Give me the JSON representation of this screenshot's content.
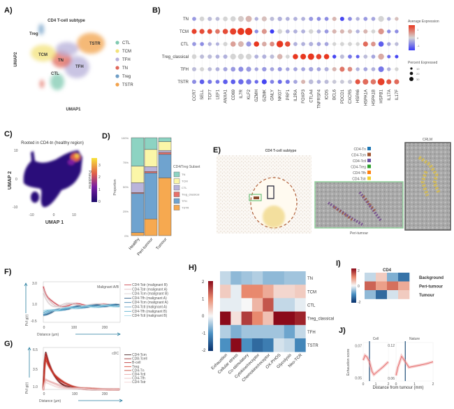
{
  "panels": {
    "a": "A)",
    "b": "B)",
    "c": "C)",
    "d": "D)",
    "e": "E)",
    "f": "F)",
    "g": "G)",
    "h": "H)",
    "i": "I)",
    "j": "J)"
  },
  "chart_data": [
    {
      "id": "A",
      "type": "scatter",
      "title": "CD4 T-cell subtype",
      "xlabel": "UMAP1",
      "ylabel": "UMAP2",
      "xticks": [
        "-10",
        "0",
        "10"
      ],
      "yticks": [
        "10",
        "5",
        "0",
        "-5",
        "-10"
      ],
      "legend": [
        {
          "label": "CTL",
          "color": "#7fc9b0"
        },
        {
          "label": "TCM",
          "color": "#f3e27a"
        },
        {
          "label": "TFH",
          "color": "#b7b0da"
        },
        {
          "label": "TN",
          "color": "#e0675a"
        },
        {
          "label": "Treg",
          "color": "#6f9ec6"
        },
        {
          "label": "TSTR",
          "color": "#f2a24b"
        }
      ],
      "cluster_labels": [
        "Treg",
        "TCM",
        "TN",
        "TFH",
        "CTL",
        "TSTR"
      ]
    },
    {
      "id": "B",
      "type": "dotplot",
      "rows": [
        "TN",
        "TCM",
        "CTL",
        "Treg_classical",
        "TFH",
        "TSTR"
      ],
      "genes": [
        "CCR7",
        "SELL",
        "TCF7",
        "LEF1",
        "ANXA1",
        "CD69",
        "IL7R",
        "KLF2",
        "GZMH",
        "GZMK",
        "GNLY",
        "NKG7",
        "PRF1",
        "IL2RA",
        "FOXP3",
        "CTLA4",
        "TNFRSF4",
        "ICOS",
        "BCL6",
        "PDCD1",
        "CXCR5",
        "HSPA6",
        "HSPA1A",
        "HSPA1B",
        "HSPB1",
        "IL17A",
        "IL17F"
      ],
      "avg_expression": [
        [
          -0.5,
          0,
          -0.2,
          -0.2,
          0,
          0,
          0.1,
          0.3,
          -0.3,
          0.2,
          -0.2,
          -0.3,
          -0.3,
          -0.3,
          -0.3,
          -0.5,
          -0.6,
          -0.6,
          0.3,
          -1.2,
          -0.6,
          -0.3,
          -0.5,
          -0.4,
          0,
          -0.3,
          0.2
        ],
        [
          1.4,
          1.3,
          1.3,
          0.9,
          1.3,
          1.4,
          1.5,
          1.5,
          -0.6,
          0.6,
          -1.3,
          0,
          -0.3,
          -0.3,
          -0.3,
          0,
          -0.3,
          -0.5,
          0.3,
          0.3,
          0.2,
          -0.3,
          0.3,
          0,
          0.6,
          -0.6,
          -0.6
        ],
        [
          -0.5,
          -0.6,
          -0.3,
          -0.3,
          0,
          0.5,
          0.3,
          -0.5,
          1.5,
          0.4,
          0.7,
          1.5,
          1.3,
          -0.3,
          -0.3,
          -0.3,
          -0.4,
          -0.4,
          0,
          0,
          0,
          0,
          1.0,
          0.6,
          -1.0,
          -0.4,
          -0.2
        ],
        [
          0,
          -0.2,
          -0.2,
          -0.3,
          -0.3,
          0,
          0,
          0,
          -0.3,
          -0.3,
          -0.2,
          0.3,
          0,
          1.5,
          1.5,
          1.6,
          1.4,
          1.5,
          -1.2,
          -0.2,
          -0.8,
          -1.0,
          -0.2,
          -0.4,
          0.4,
          -0.9,
          -1.2
        ],
        [
          -0.2,
          0,
          -0.2,
          -0.3,
          -0.4,
          -0.5,
          -0.6,
          -0.5,
          -0.4,
          -0.5,
          -0.4,
          -0.5,
          -0.4,
          -0.4,
          -0.4,
          -0.4,
          -0.4,
          -0.3,
          0.3,
          0.9,
          0.7,
          -0.3,
          -0.4,
          -0.3,
          -0.8,
          -0.3,
          0
        ],
        [
          -0.6,
          -1.0,
          -0.8,
          -0.8,
          -1.0,
          -1.0,
          -0.9,
          -0.8,
          -0.9,
          -1.2,
          -0.7,
          -0.9,
          -0.8,
          -0.4,
          0.3,
          -0.2,
          -0.3,
          -0.2,
          -0.1,
          -0.1,
          -0.1,
          1.2,
          1.0,
          0.9,
          1.4,
          1.2,
          1.0
        ]
      ],
      "percent_expressed": [
        [
          5,
          8,
          6,
          5,
          8,
          12,
          15,
          18,
          4,
          10,
          6,
          7,
          5,
          5,
          5,
          6,
          5,
          5,
          6,
          6,
          5,
          4,
          5,
          5,
          15,
          4,
          4
        ],
        [
          10,
          10,
          9,
          8,
          12,
          20,
          25,
          28,
          4,
          10,
          6,
          8,
          5,
          5,
          5,
          7,
          5,
          5,
          6,
          6,
          6,
          4,
          6,
          5,
          15,
          4,
          4
        ],
        [
          5,
          5,
          4,
          3,
          6,
          12,
          14,
          10,
          12,
          8,
          8,
          22,
          12,
          5,
          5,
          6,
          5,
          5,
          4,
          5,
          5,
          4,
          10,
          8,
          12,
          4,
          4
        ],
        [
          8,
          6,
          6,
          5,
          6,
          15,
          15,
          14,
          5,
          6,
          6,
          12,
          5,
          12,
          14,
          20,
          12,
          12,
          4,
          6,
          5,
          3,
          5,
          5,
          16,
          3,
          3
        ],
        [
          6,
          6,
          5,
          5,
          6,
          8,
          10,
          10,
          4,
          7,
          5,
          6,
          4,
          5,
          5,
          7,
          5,
          6,
          6,
          10,
          8,
          4,
          5,
          5,
          14,
          4,
          4
        ],
        [
          6,
          8,
          6,
          5,
          8,
          8,
          12,
          12,
          4,
          10,
          5,
          6,
          6,
          5,
          6,
          8,
          5,
          6,
          5,
          5,
          6,
          10,
          14,
          12,
          25,
          10,
          10
        ]
      ],
      "color_legend_title": "Average Expression",
      "color_ticks": [
        "1",
        "0",
        "-1"
      ],
      "size_legend_title": "Percent Expressed",
      "size_ticks": [
        "10",
        "20",
        "30"
      ],
      "colors": {
        "low": "#3b3bf5",
        "mid": "#d4d4d4",
        "high": "#e8371f"
      }
    },
    {
      "id": "C",
      "type": "scatter",
      "title": "Rooted in CD4-tn (healthy region)",
      "xlabel": "UMAP 1",
      "ylabel": "UMAP 2",
      "xticks": [
        "-10",
        "0",
        "10"
      ],
      "yticks": [
        "10",
        "0",
        "-10"
      ],
      "colorbar_title": "Pseudotime",
      "colorbar_ticks": [
        "3",
        "2",
        "1",
        "0"
      ]
    },
    {
      "id": "D",
      "type": "bar",
      "stacked": true,
      "categories": [
        "Healthy",
        "Peri-tumour",
        "Tumour"
      ],
      "ylabel": "Proportion",
      "yticks": [
        "100%",
        "75%",
        "50%",
        "25%",
        "0%"
      ],
      "legend_title": "CD4/Treg Subset",
      "series": [
        {
          "name": "TSTR",
          "color": "#f6a950",
          "values": [
            3,
            17,
            59
          ]
        },
        {
          "name": "TFH",
          "color": "#6fa3cf",
          "values": [
            40,
            47,
            24
          ]
        },
        {
          "name": "Treg_classical",
          "color": "#e8716a",
          "values": [
            1,
            1.5,
            2
          ]
        },
        {
          "name": "CTL",
          "color": "#b9b4da",
          "values": [
            10,
            5,
            2
          ]
        },
        {
          "name": "TCM",
          "color": "#fbf6a8",
          "values": [
            17,
            17.5,
            9
          ]
        },
        {
          "name": "TN",
          "color": "#8dd3c2",
          "values": [
            29,
            12,
            4
          ]
        }
      ]
    },
    {
      "id": "E",
      "type": "image",
      "title": "CD4 T-cell subtype",
      "inset_label": "Peri-tumour",
      "crlm_label": "CRLM",
      "legend": [
        {
          "label": "CD4-Tn",
          "color": "#1f77b4"
        },
        {
          "label": "CD4-Tcm",
          "color": "#a0522d"
        },
        {
          "label": "CD4-Tctl",
          "color": "#6a51a3"
        },
        {
          "label": "CD4-Treg",
          "color": "#2ca02c"
        },
        {
          "label": "CD4-Tfh",
          "color": "#ff7f0e"
        },
        {
          "label": "CD4-Tstr",
          "color": "#f2d02e"
        }
      ]
    },
    {
      "id": "F",
      "type": "line",
      "annotation": "Malignant A/B",
      "xlabel": "Distance (µm)",
      "ylabel": "Pcf g(r)",
      "xticks": [
        "0",
        "100",
        "200"
      ],
      "yticks": [
        "3.0",
        "1.0",
        "-0.5"
      ],
      "xlim": [
        0,
        250
      ],
      "ylim": [
        -0.5,
        3.0
      ],
      "legend": [
        {
          "label": "CD4-Tstr (malignant B)",
          "color": "#c9343f"
        },
        {
          "label": "CD4-Tstr (malignant A)",
          "color": "#d9b8bb"
        },
        {
          "label": "CD4-Tcm (malignant B)",
          "color": "#d6c9cb"
        },
        {
          "label": "CD4-Tfh (malignant A)",
          "color": "#1f4e79"
        },
        {
          "label": "CD4-Tcm (malignant A)",
          "color": "#2f78a8"
        },
        {
          "label": "CD4-Tctl (malignant A)",
          "color": "#5a9fc6"
        },
        {
          "label": "CD4-Tfh (malignant B)",
          "color": "#4aa7c9"
        },
        {
          "label": "CD4-Tctl (malignant B)",
          "color": "#9fd5e6"
        }
      ]
    },
    {
      "id": "G",
      "type": "line",
      "annotation": "cDC",
      "xlabel": "Distance (µm)",
      "ylabel": "Pcf g(r)",
      "xticks": [
        "0",
        "100",
        "200"
      ],
      "yticks": [
        "6.5",
        "3.5",
        "1.0"
      ],
      "xlim": [
        0,
        250
      ],
      "ylim": [
        1.0,
        6.5
      ],
      "legend": [
        {
          "label": "CD4-Tcm",
          "color": "#3a0d0d"
        },
        {
          "label": "CD8-Tcell",
          "color": "#8b1a1a"
        },
        {
          "label": "B-cell",
          "color": "#b22222"
        },
        {
          "label": "Treg",
          "color": "#d7301f"
        },
        {
          "label": "CD4-Tn",
          "color": "#c0392b"
        },
        {
          "label": "CD4-Tctl",
          "color": "#e8a3a3"
        },
        {
          "label": "CD4-Tfh",
          "color": "#eab8b8"
        },
        {
          "label": "CD4-Tstr",
          "color": "#f0d0d0"
        }
      ]
    },
    {
      "id": "H",
      "type": "heatmap",
      "rows": [
        "TN",
        "TCM",
        "CTL",
        "Treg_classical",
        "TFH",
        "TSTR"
      ],
      "columns": [
        "Exhaustion",
        "Cellular stress",
        "Co-stimulatory",
        "Cytokine/receptor",
        "Chemokine/receptor",
        "OX-PHOS",
        "Glycolysis",
        "Neo-TCR"
      ],
      "values": [
        [
          -0.3,
          -0.6,
          -0.5,
          -0.4,
          -0.6,
          -0.6,
          -0.5,
          -0.5
        ],
        [
          0.4,
          -0.1,
          1.0,
          1.0,
          0.7,
          0.3,
          0.3,
          0.4
        ],
        [
          -0.1,
          -0.1,
          0.0,
          0.6,
          1.4,
          -0.3,
          -0.3,
          -0.1
        ],
        [
          2.0,
          0.2,
          1.6,
          1.0,
          0.5,
          2.0,
          2.0,
          1.8
        ],
        [
          -0.4,
          -0.7,
          -0.5,
          -0.5,
          -0.5,
          -0.5,
          -0.8,
          -0.3
        ],
        [
          -1.0,
          2.0,
          -1.0,
          -1.4,
          -1.2,
          -0.2,
          -0.3,
          -1.1
        ]
      ],
      "colorbar_ticks": [
        "2",
        "1",
        "0",
        "-1",
        "-2"
      ],
      "range": [
        -2,
        2
      ]
    },
    {
      "id": "I",
      "type": "heatmap",
      "title": "CD4",
      "rows": [
        "Background",
        "Peri-tumour",
        "Tumour"
      ],
      "values": [
        [
          -0.3,
          0.4,
          -0.7,
          -1.3
        ],
        [
          1.3,
          0.8,
          1.2,
          0.7
        ],
        [
          -0.6,
          -1.4,
          -0.2,
          0.4
        ]
      ],
      "colorbar_ticks": [
        "2",
        "0",
        "-2"
      ],
      "range": [
        -2,
        2
      ]
    },
    {
      "id": "J",
      "type": "line",
      "ylabel": "Exhaustion score",
      "xlabel": "Distance from tumour (mm)",
      "panels": [
        {
          "title": "Cell",
          "yticks": [
            "0.07",
            "0.05"
          ],
          "xticks": [
            "0",
            "1",
            "2"
          ],
          "ylim": [
            0.048,
            0.072
          ],
          "x": [
            0,
            0.15,
            0.3,
            0.5,
            0.7,
            0.85,
            1.0,
            1.3,
            1.6,
            2.0
          ],
          "y": [
            0.061,
            0.064,
            0.063,
            0.06,
            0.054,
            0.052,
            0.053,
            0.055,
            0.057,
            0.06
          ]
        },
        {
          "title": "Nature",
          "yticks": [
            "0.12",
            "0.06"
          ],
          "xticks": [
            "0",
            "1",
            "2"
          ],
          "ylim": [
            0.055,
            0.125
          ],
          "x": [
            0,
            0.1,
            0.3,
            0.5,
            0.7,
            1.0,
            1.3,
            1.6,
            2.0
          ],
          "y": [
            0.065,
            0.08,
            0.1,
            0.09,
            0.08,
            0.082,
            0.084,
            0.086,
            0.09
          ]
        }
      ]
    }
  ]
}
